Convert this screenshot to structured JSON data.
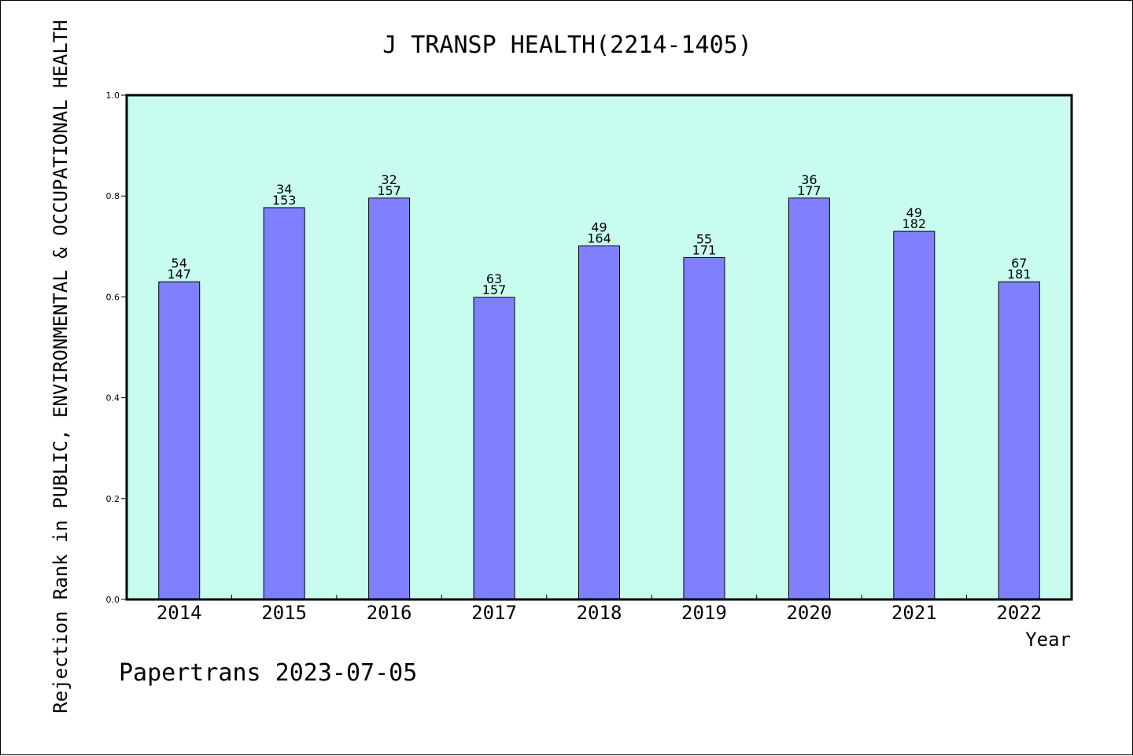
{
  "chart_data": {
    "type": "bar",
    "title": "J TRANSP HEALTH(2214-1405)",
    "xlabel": "Year",
    "ylabel": "Rejection Rank in PUBLIC, ENVIRONMENTAL & OCCUPATIONAL HEALTH",
    "categories": [
      "2014",
      "2015",
      "2016",
      "2017",
      "2018",
      "2019",
      "2020",
      "2021",
      "2022"
    ],
    "values": [
      0.63,
      0.777,
      0.796,
      0.599,
      0.701,
      0.678,
      0.796,
      0.73,
      0.63
    ],
    "rank_labels": [
      "54",
      "34",
      "32",
      "63",
      "49",
      "55",
      "36",
      "49",
      "67"
    ],
    "total_labels": [
      "147",
      "153",
      "157",
      "157",
      "164",
      "171",
      "177",
      "182",
      "181"
    ],
    "ylim": [
      0,
      1
    ],
    "yticks": [
      "0.0",
      "0.2",
      "0.4",
      "0.6",
      "0.8",
      "1.0"
    ],
    "grid": false,
    "plot_background": "#c8fcee",
    "bar_color": "#8080ff",
    "bar_edge_color": "#000000"
  },
  "footer": {
    "text": "Papertrans 2023-07-05"
  }
}
